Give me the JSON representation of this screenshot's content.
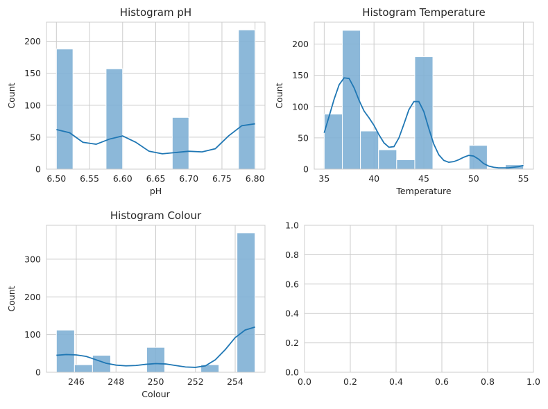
{
  "chart_data": [
    {
      "type": "bar",
      "title": "Histogram pH",
      "xlabel": "pH",
      "ylabel": "Count",
      "xlim": [
        6.485,
        6.815
      ],
      "ylim": [
        0,
        230
      ],
      "xticks": [
        6.5,
        6.55,
        6.6,
        6.65,
        6.7,
        6.75,
        6.8
      ],
      "xtick_labels": [
        "6.50",
        "6.55",
        "6.60",
        "6.65",
        "6.70",
        "6.75",
        "6.80"
      ],
      "yticks": [
        0,
        50,
        100,
        150,
        200
      ],
      "ytick_labels": [
        "0",
        "50",
        "100",
        "150",
        "200"
      ],
      "grid": true,
      "bins": [
        {
          "x0": 6.5,
          "x1": 6.525,
          "count": 188
        },
        {
          "x0": 6.525,
          "x1": 6.55,
          "count": 0
        },
        {
          "x0": 6.55,
          "x1": 6.575,
          "count": 0
        },
        {
          "x0": 6.575,
          "x1": 6.6,
          "count": 157
        },
        {
          "x0": 6.6,
          "x1": 6.625,
          "count": 0
        },
        {
          "x0": 6.625,
          "x1": 6.65,
          "count": 0
        },
        {
          "x0": 6.65,
          "x1": 6.675,
          "count": 0
        },
        {
          "x0": 6.675,
          "x1": 6.7,
          "count": 81
        },
        {
          "x0": 6.7,
          "x1": 6.725,
          "count": 0
        },
        {
          "x0": 6.725,
          "x1": 6.75,
          "count": 0
        },
        {
          "x0": 6.75,
          "x1": 6.775,
          "count": 0
        },
        {
          "x0": 6.775,
          "x1": 6.8,
          "count": 218
        }
      ],
      "kde": {
        "x": [
          6.5,
          6.52,
          6.54,
          6.56,
          6.58,
          6.6,
          6.62,
          6.64,
          6.66,
          6.68,
          6.7,
          6.72,
          6.74,
          6.76,
          6.78,
          6.8
        ],
        "y": [
          62,
          57,
          42,
          39,
          47,
          52,
          42,
          28,
          24,
          26,
          28,
          27,
          32,
          52,
          68,
          71
        ]
      }
    },
    {
      "type": "bar",
      "title": "Histogram Temperature",
      "xlabel": "Temperature",
      "ylabel": "Count",
      "xlim": [
        34,
        56
      ],
      "ylim": [
        0,
        235
      ],
      "xticks": [
        35,
        40,
        45,
        50,
        55
      ],
      "xtick_labels": [
        "35",
        "40",
        "45",
        "50",
        "55"
      ],
      "yticks": [
        0,
        50,
        100,
        150,
        200
      ],
      "ytick_labels": [
        "0",
        "50",
        "100",
        "150",
        "200"
      ],
      "grid": true,
      "bins": [
        {
          "x0": 35,
          "x1": 36.818,
          "count": 88
        },
        {
          "x0": 36.818,
          "x1": 38.636,
          "count": 222
        },
        {
          "x0": 38.636,
          "x1": 40.455,
          "count": 61
        },
        {
          "x0": 40.455,
          "x1": 42.273,
          "count": 31
        },
        {
          "x0": 42.273,
          "x1": 44.091,
          "count": 15
        },
        {
          "x0": 44.091,
          "x1": 45.909,
          "count": 180
        },
        {
          "x0": 45.909,
          "x1": 47.727,
          "count": 0
        },
        {
          "x0": 47.727,
          "x1": 49.545,
          "count": 0
        },
        {
          "x0": 49.545,
          "x1": 51.364,
          "count": 38
        },
        {
          "x0": 51.364,
          "x1": 53.182,
          "count": 0
        },
        {
          "x0": 53.182,
          "x1": 55,
          "count": 7
        }
      ],
      "kde": {
        "x": [
          35,
          35.5,
          36,
          36.5,
          37,
          37.5,
          38,
          38.5,
          39,
          39.5,
          40,
          40.5,
          41,
          41.5,
          42,
          42.5,
          43,
          43.5,
          44,
          44.5,
          45,
          45.5,
          46,
          46.5,
          47,
          47.5,
          48,
          48.5,
          49,
          49.5,
          50,
          50.5,
          51,
          51.5,
          52,
          52.5,
          53,
          53.5,
          54,
          54.5,
          55
        ],
        "y": [
          58,
          85,
          112,
          135,
          146,
          145,
          130,
          110,
          93,
          82,
          70,
          55,
          42,
          35,
          36,
          50,
          72,
          95,
          108,
          108,
          92,
          65,
          40,
          23,
          14,
          11,
          12,
          15,
          19,
          22,
          21,
          16,
          9,
          5,
          3,
          2,
          2,
          2,
          3,
          4,
          6
        ]
      }
    },
    {
      "type": "bar",
      "title": "Histogram Colour",
      "xlabel": "Colour",
      "ylabel": "Count",
      "xlim": [
        244.5,
        255.5
      ],
      "ylim": [
        0,
        390
      ],
      "xticks": [
        246,
        248,
        250,
        252,
        254
      ],
      "xtick_labels": [
        "246",
        "248",
        "250",
        "252",
        "254"
      ],
      "yticks": [
        0,
        100,
        200,
        300
      ],
      "ytick_labels": [
        "0",
        "100",
        "200",
        "300"
      ],
      "grid": true,
      "bins": [
        {
          "x0": 245,
          "x1": 245.909,
          "count": 112
        },
        {
          "x0": 245.909,
          "x1": 246.818,
          "count": 20
        },
        {
          "x0": 246.818,
          "x1": 247.727,
          "count": 45
        },
        {
          "x0": 247.727,
          "x1": 248.636,
          "count": 0
        },
        {
          "x0": 248.636,
          "x1": 249.545,
          "count": 0
        },
        {
          "x0": 249.545,
          "x1": 250.455,
          "count": 66
        },
        {
          "x0": 250.455,
          "x1": 251.364,
          "count": 0
        },
        {
          "x0": 251.364,
          "x1": 252.273,
          "count": 0
        },
        {
          "x0": 252.273,
          "x1": 253.182,
          "count": 20
        },
        {
          "x0": 253.182,
          "x1": 254.091,
          "count": 0
        },
        {
          "x0": 254.091,
          "x1": 255,
          "count": 370
        }
      ],
      "kde": {
        "x": [
          245,
          245.5,
          246,
          246.5,
          247,
          247.5,
          248,
          248.5,
          249,
          249.5,
          250,
          250.5,
          251,
          251.5,
          252,
          252.5,
          253,
          253.5,
          254,
          254.5,
          255
        ],
        "y": [
          45,
          47,
          46,
          42,
          33,
          24,
          19,
          17,
          18,
          21,
          23,
          22,
          18,
          14,
          13,
          17,
          33,
          60,
          92,
          112,
          120
        ]
      }
    },
    {
      "type": "scatter",
      "title": "",
      "xlabel": "",
      "ylabel": "",
      "xlim": [
        0,
        1
      ],
      "ylim": [
        0,
        1
      ],
      "xticks": [
        0,
        0.2,
        0.4,
        0.6,
        0.8,
        1.0
      ],
      "xtick_labels": [
        "0.0",
        "0.2",
        "0.4",
        "0.6",
        "0.8",
        "1.0"
      ],
      "yticks": [
        0,
        0.2,
        0.4,
        0.6,
        0.8,
        1.0
      ],
      "ytick_labels": [
        "0.0",
        "0.2",
        "0.4",
        "0.6",
        "0.8",
        "1.0"
      ],
      "grid": true,
      "bins": [],
      "kde": null
    }
  ]
}
